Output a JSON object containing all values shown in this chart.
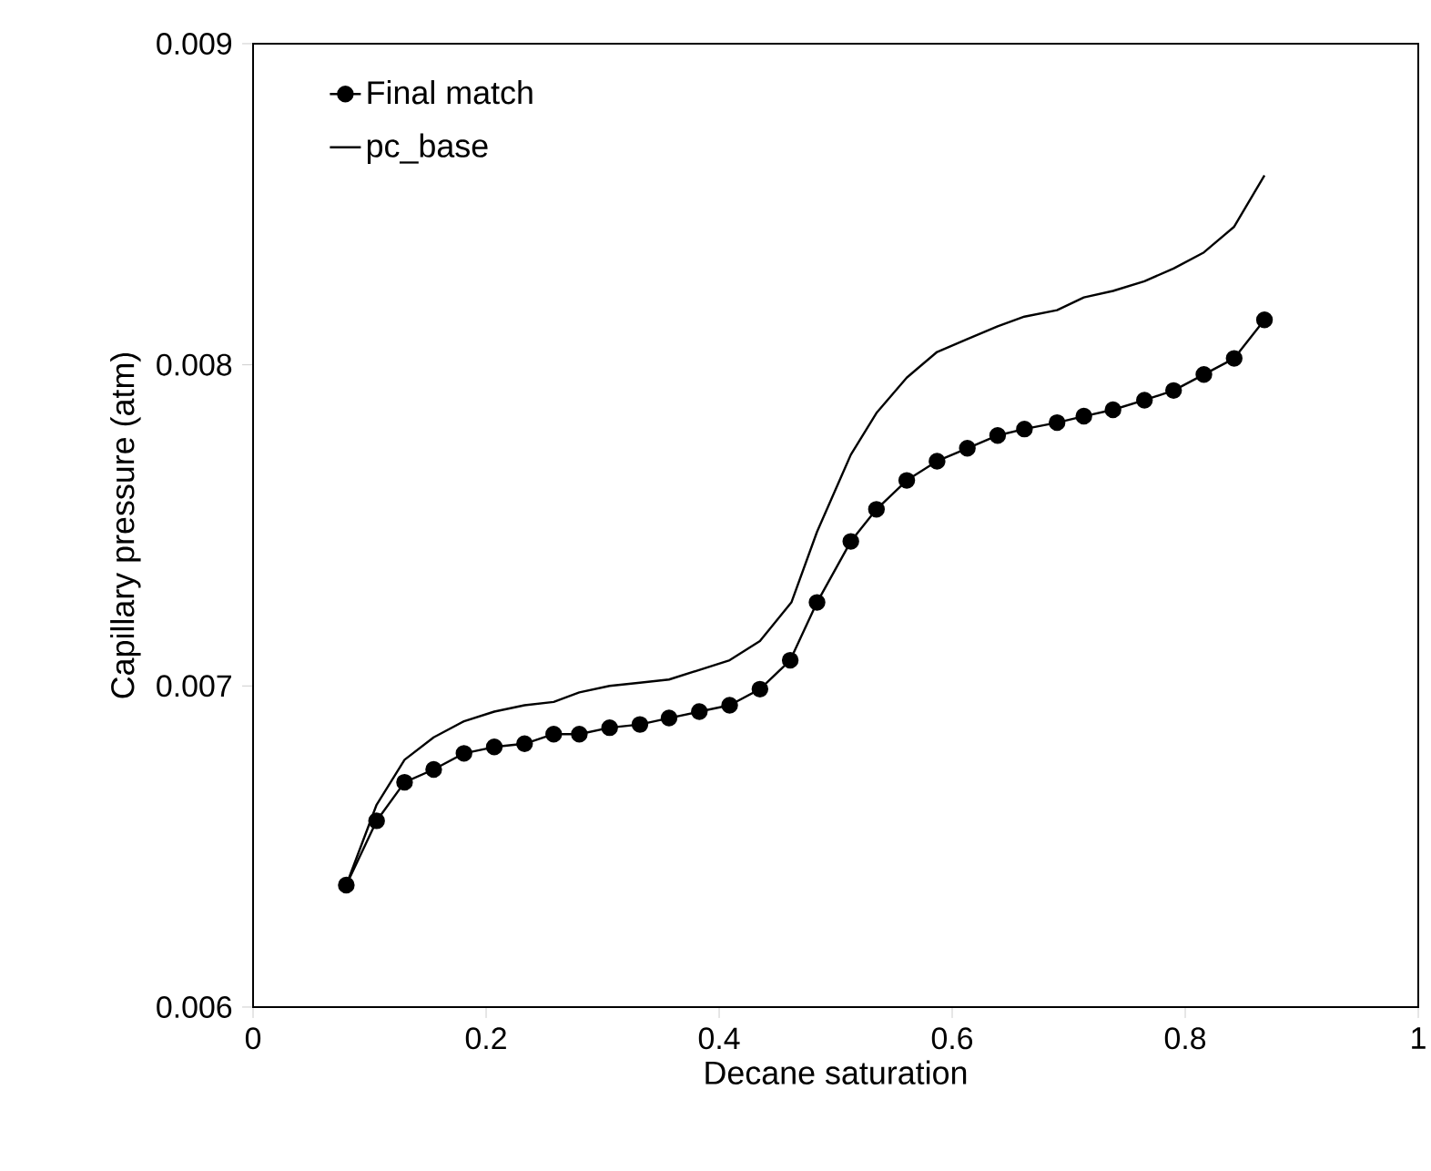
{
  "chart_data": {
    "type": "line",
    "xlabel": "Decane saturation",
    "ylabel": "Capillary pressure (atm)",
    "xlim": [
      0,
      1
    ],
    "ylim": [
      0.006,
      0.009
    ],
    "xticks": [
      0,
      0.2,
      0.4,
      0.6,
      0.8,
      1
    ],
    "yticks": [
      0.006,
      0.007,
      0.008,
      0.009
    ],
    "grid": false,
    "legend": "top left",
    "line_style": "solid",
    "series": [
      {
        "name": "Final match",
        "color": "#000000",
        "marker": "circle",
        "x": [
          0.08,
          0.106,
          0.13,
          0.155,
          0.181,
          0.207,
          0.233,
          0.258,
          0.28,
          0.306,
          0.332,
          0.357,
          0.383,
          0.409,
          0.435,
          0.461,
          0.484,
          0.513,
          0.535,
          0.561,
          0.587,
          0.613,
          0.639,
          0.662,
          0.69,
          0.713,
          0.738,
          0.765,
          0.79,
          0.816,
          0.842,
          0.868
        ],
        "values": [
          0.00638,
          0.00658,
          0.0067,
          0.00674,
          0.00679,
          0.00681,
          0.00682,
          0.00685,
          0.00685,
          0.00687,
          0.00688,
          0.0069,
          0.00692,
          0.00694,
          0.00699,
          0.00708,
          0.00726,
          0.00745,
          0.00755,
          0.00764,
          0.0077,
          0.00774,
          0.00778,
          0.0078,
          0.00782,
          0.00784,
          0.00786,
          0.00789,
          0.00792,
          0.00797,
          0.00802,
          0.00814
        ]
      },
      {
        "name": "pc_base",
        "color": "#000000",
        "marker": "none",
        "x": [
          0.08,
          0.106,
          0.13,
          0.155,
          0.181,
          0.207,
          0.233,
          0.258,
          0.28,
          0.306,
          0.332,
          0.357,
          0.383,
          0.409,
          0.435,
          0.462,
          0.484,
          0.513,
          0.535,
          0.561,
          0.587,
          0.613,
          0.639,
          0.662,
          0.69,
          0.713,
          0.738,
          0.765,
          0.79,
          0.816,
          0.842,
          0.868
        ],
        "values": [
          0.00638,
          0.00663,
          0.00677,
          0.00684,
          0.00689,
          0.00692,
          0.00694,
          0.00695,
          0.00698,
          0.007,
          0.00701,
          0.00702,
          0.00705,
          0.00708,
          0.00714,
          0.00726,
          0.00748,
          0.00772,
          0.00785,
          0.00796,
          0.00804,
          0.00808,
          0.00812,
          0.00815,
          0.00817,
          0.00821,
          0.00823,
          0.00826,
          0.0083,
          0.00835,
          0.00843,
          0.00859
        ]
      }
    ]
  }
}
